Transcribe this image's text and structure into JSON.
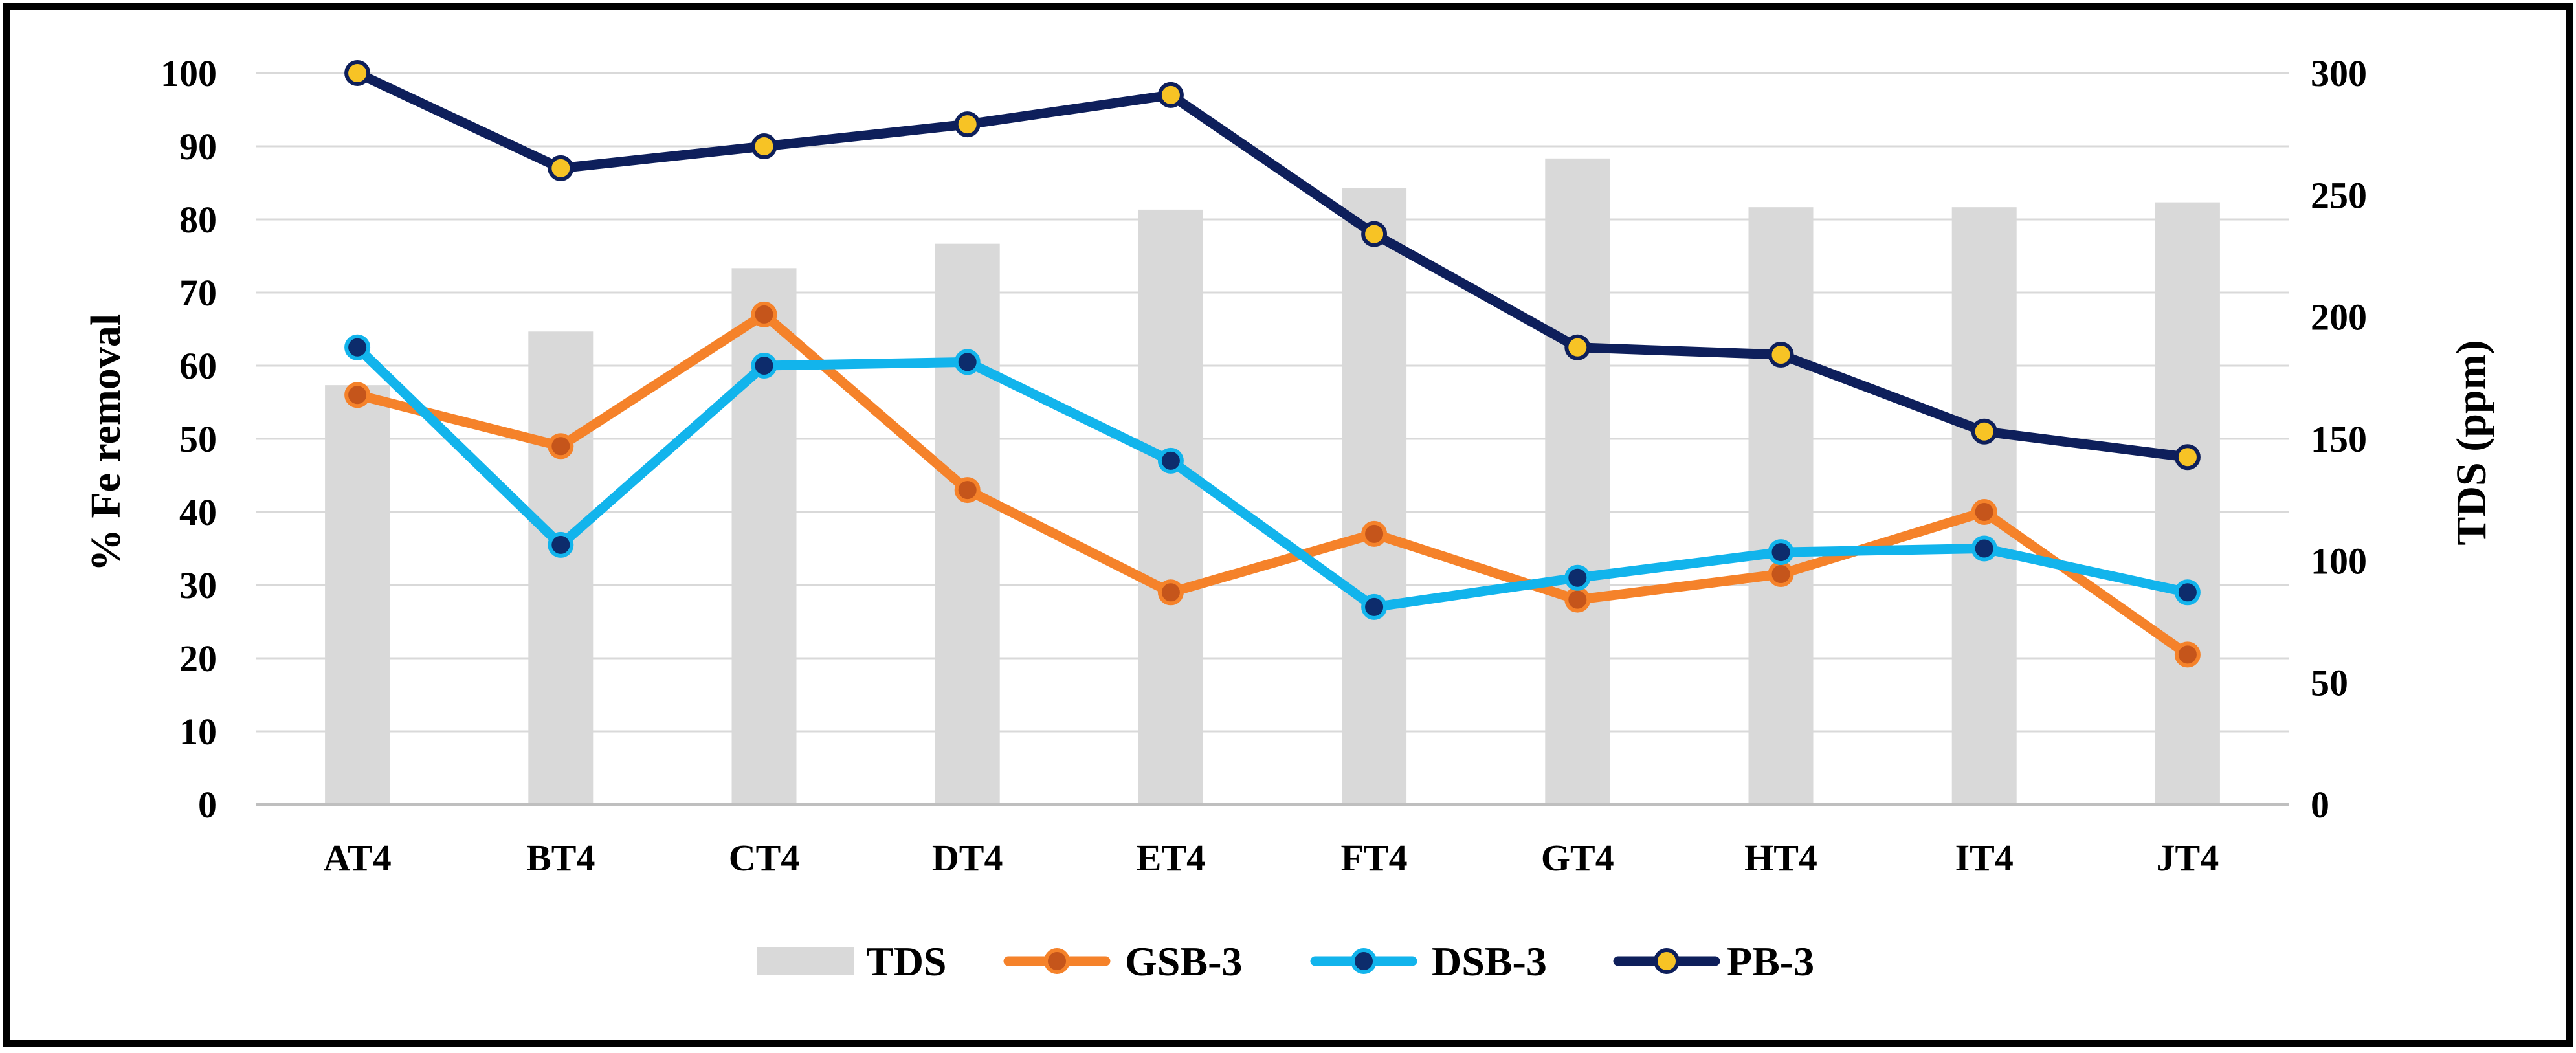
{
  "chart_data": {
    "type": "bar+line",
    "title": "",
    "categories": [
      "AT4",
      "BT4",
      "CT4",
      "DT4",
      "ET4",
      "FT4",
      "GT4",
      "HT4",
      "IT4",
      "JT4"
    ],
    "ylabel": "% Fe removal",
    "y2label": "TDS (ppm)",
    "ylim": [
      0,
      100
    ],
    "y2lim": [
      0,
      300
    ],
    "yticks": [
      "0",
      "10",
      "20",
      "30",
      "40",
      "50",
      "60",
      "70",
      "80",
      "90",
      "100"
    ],
    "y2ticks": [
      "0",
      "50",
      "100",
      "150",
      "200",
      "250",
      "300"
    ],
    "grid": true,
    "legend_position": "bottom",
    "series": [
      {
        "name": "TDS",
        "type": "bar",
        "axis": "right",
        "color": "#d9d9d9",
        "values": [
          172,
          194,
          220,
          230,
          244,
          253,
          265,
          245,
          245,
          247
        ]
      },
      {
        "name": "GSB-3",
        "type": "line",
        "axis": "left",
        "color": "#f5822a",
        "marker_fill": "#c5551b",
        "values": [
          56,
          49,
          67,
          43,
          29,
          37,
          28,
          31.5,
          40,
          20.5
        ]
      },
      {
        "name": "DSB-3",
        "type": "line",
        "axis": "left",
        "color": "#12b4ec",
        "marker_fill": "#0d2c6c",
        "values": [
          62.5,
          35.5,
          60,
          60.5,
          47,
          27,
          31,
          34.5,
          35,
          29
        ]
      },
      {
        "name": "PB-3",
        "type": "line",
        "axis": "left",
        "color": "#0e1f5b",
        "marker_fill": "#f7c325",
        "values": [
          100,
          87,
          90,
          93,
          97,
          78,
          62.5,
          61.5,
          51,
          47.5
        ]
      }
    ]
  }
}
